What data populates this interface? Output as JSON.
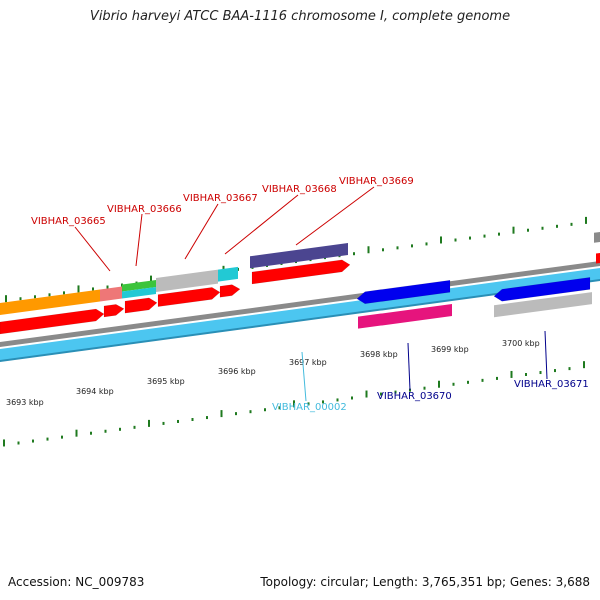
{
  "title": "Vibrio harveyi ATCC BAA-1116 chromosome I, complete genome",
  "footer": {
    "accession": "Accession: NC_009783",
    "summary": "Topology: circular; Length: 3,765,351 bp; Genes: 3,688"
  },
  "colors": {
    "backbone": "#8a8a8a",
    "tick": "#1f7a1f",
    "forward_label": "#cc0000",
    "reverse_label": "#00008b",
    "rna_label": "#44bbdd",
    "cds_forward": "#ff0000",
    "cds_reverse": "#0000ee",
    "gene_track": "#4cc6f0",
    "orange": "#ff9900",
    "gray": "#bbbbbb",
    "purple": "#4b4590",
    "magenta": "#e6147d",
    "cyan": "#22c9d4",
    "green": "#3cc43c",
    "salmon": "#ee7777"
  },
  "kbp_labels": [
    "3693 kbp",
    "3694 kbp",
    "3695 kbp",
    "3696 kbp",
    "3697 kbp",
    "3698 kbp",
    "3699 kbp",
    "3700 kbp"
  ],
  "gene_labels_forward": [
    "VIBHAR_03665",
    "VIBHAR_03666",
    "VIBHAR_03667",
    "VIBHAR_03668",
    "VIBHAR_03669"
  ],
  "gene_labels_reverse": [
    "VIBHAR_03670",
    "VIBHAR_03671"
  ],
  "gene_labels_rna": [
    "VIBHAR_00002"
  ]
}
